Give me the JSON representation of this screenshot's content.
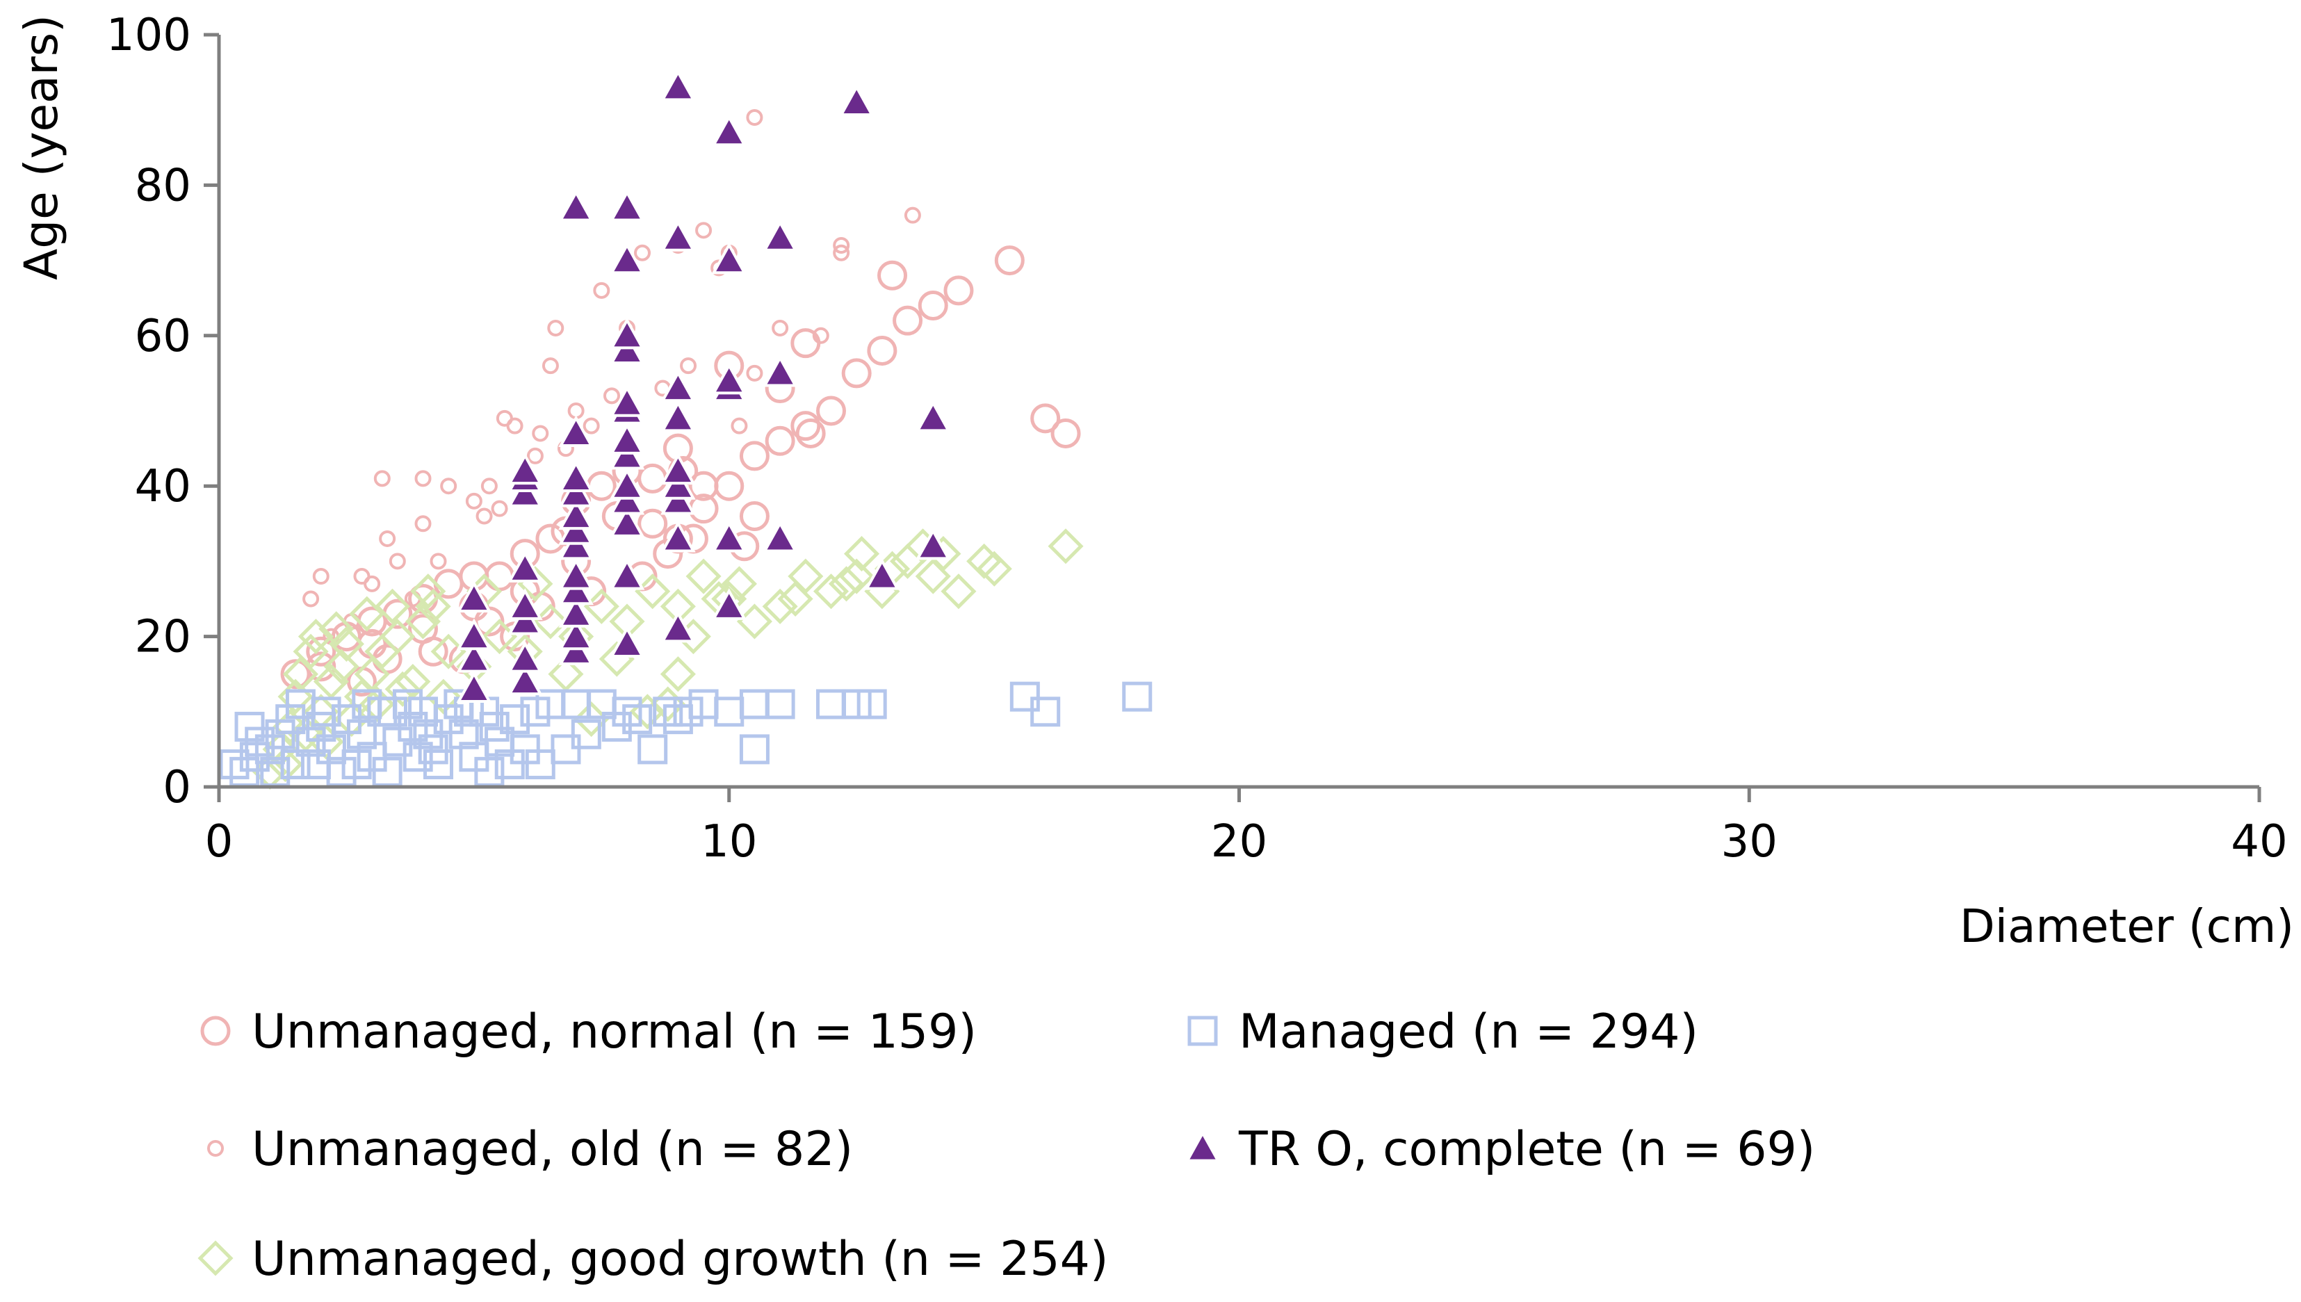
{
  "chart_data": {
    "type": "scatter",
    "title": "",
    "xlabel": "Diameter (cm)",
    "ylabel": "Age (years)",
    "xlim": [
      0,
      40
    ],
    "ylim": [
      0,
      100
    ],
    "xticks": [
      0,
      10,
      20,
      30,
      40
    ],
    "yticks": [
      0,
      20,
      40,
      60,
      80,
      100
    ],
    "grid": false,
    "legend_position": "bottom",
    "colors": {
      "normal": "#f0b4b4",
      "old": "#f0b4b4",
      "good": "#d6e8b0",
      "managed": "#b4c6ec",
      "tro": "#6a2a8c"
    },
    "series": [
      {
        "key": "normal",
        "name": "Unmanaged, normal (n = 159)",
        "marker": "circle-large",
        "points": [
          [
            1.5,
            15
          ],
          [
            2,
            18
          ],
          [
            2.5,
            20
          ],
          [
            3,
            22
          ],
          [
            3.5,
            23
          ],
          [
            4,
            25
          ],
          [
            4.5,
            27
          ],
          [
            5,
            28
          ],
          [
            5.5,
            28
          ],
          [
            6,
            31
          ],
          [
            6.5,
            33
          ],
          [
            7,
            38
          ],
          [
            7.5,
            40
          ],
          [
            8,
            42
          ],
          [
            8.5,
            41
          ],
          [
            9,
            45
          ],
          [
            9,
            33
          ],
          [
            9.5,
            40
          ],
          [
            10,
            40
          ],
          [
            10.5,
            44
          ],
          [
            11,
            46
          ],
          [
            11.5,
            48
          ],
          [
            12,
            50
          ],
          [
            12.5,
            55
          ],
          [
            13,
            58
          ],
          [
            13.5,
            62
          ],
          [
            14,
            64
          ],
          [
            14.5,
            66
          ],
          [
            15.5,
            70
          ],
          [
            13.2,
            68
          ],
          [
            11,
            53
          ],
          [
            16.2,
            49
          ],
          [
            16.6,
            47
          ],
          [
            11.6,
            47
          ],
          [
            10,
            56
          ],
          [
            11.5,
            59
          ],
          [
            10.5,
            36
          ],
          [
            9.5,
            37
          ],
          [
            8.5,
            35
          ],
          [
            7,
            30
          ],
          [
            6,
            26
          ],
          [
            5,
            24
          ],
          [
            4,
            21
          ],
          [
            3,
            19
          ],
          [
            2,
            16
          ],
          [
            2.8,
            14
          ],
          [
            3.3,
            17
          ],
          [
            4.2,
            18
          ],
          [
            5.3,
            22
          ],
          [
            6.3,
            24
          ],
          [
            7.3,
            26
          ],
          [
            8.3,
            28
          ],
          [
            8.8,
            31
          ],
          [
            9.3,
            33
          ],
          [
            10.3,
            32
          ],
          [
            6.8,
            34
          ],
          [
            7.8,
            36
          ],
          [
            9.1,
            42
          ],
          [
            5.8,
            20
          ],
          [
            4.8,
            17
          ]
        ]
      },
      {
        "key": "old",
        "name": "Unmanaged, old (n = 82)",
        "marker": "circle-small",
        "points": [
          [
            1.8,
            25
          ],
          [
            2,
            28
          ],
          [
            2.8,
            28
          ],
          [
            3,
            27
          ],
          [
            3.3,
            33
          ],
          [
            3.5,
            30
          ],
          [
            3.2,
            41
          ],
          [
            4,
            41
          ],
          [
            4,
            35
          ],
          [
            4.5,
            40
          ],
          [
            5,
            38
          ],
          [
            5.3,
            40
          ],
          [
            5.5,
            37
          ],
          [
            5.6,
            49
          ],
          [
            5.8,
            48
          ],
          [
            6.3,
            47
          ],
          [
            6.5,
            56
          ],
          [
            6.6,
            61
          ],
          [
            7,
            50
          ],
          [
            7.5,
            66
          ],
          [
            8,
            61
          ],
          [
            8.3,
            71
          ],
          [
            9,
            72
          ],
          [
            9.5,
            74
          ],
          [
            9.8,
            69
          ],
          [
            10,
            71
          ],
          [
            10.5,
            89
          ],
          [
            12.2,
            72
          ],
          [
            12.2,
            71
          ],
          [
            13.6,
            76
          ],
          [
            11,
            61
          ],
          [
            10.5,
            55
          ],
          [
            8.7,
            53
          ],
          [
            8,
            58
          ],
          [
            7.3,
            48
          ],
          [
            6.8,
            45
          ],
          [
            6.2,
            44
          ],
          [
            5.2,
            36
          ],
          [
            4.3,
            30
          ],
          [
            3.8,
            25
          ],
          [
            2.6,
            22
          ],
          [
            2.2,
            20
          ],
          [
            7.7,
            52
          ],
          [
            9.2,
            56
          ],
          [
            10.2,
            48
          ],
          [
            11.8,
            60
          ]
        ]
      },
      {
        "key": "good",
        "name": "Unmanaged, good growth (n = 254)",
        "marker": "diamond",
        "points": [
          [
            1,
            2
          ],
          [
            1.2,
            5
          ],
          [
            1.4,
            8
          ],
          [
            1.5,
            12
          ],
          [
            1.6,
            15
          ],
          [
            1.8,
            18
          ],
          [
            2,
            10
          ],
          [
            2.2,
            14
          ],
          [
            2.4,
            16
          ],
          [
            2.5,
            19
          ],
          [
            2.8,
            12
          ],
          [
            3,
            15
          ],
          [
            3.2,
            18
          ],
          [
            3.5,
            20
          ],
          [
            3.8,
            14
          ],
          [
            4,
            22
          ],
          [
            4.2,
            24
          ],
          [
            4.5,
            18
          ],
          [
            5,
            16
          ],
          [
            5.5,
            20
          ],
          [
            6,
            18
          ],
          [
            6.5,
            22
          ],
          [
            7,
            20
          ],
          [
            7.5,
            24
          ],
          [
            8,
            22
          ],
          [
            8.5,
            26
          ],
          [
            9,
            24
          ],
          [
            9.5,
            28
          ],
          [
            10,
            25
          ],
          [
            10.5,
            22
          ],
          [
            11,
            24
          ],
          [
            11.5,
            28
          ],
          [
            12,
            26
          ],
          [
            12.5,
            28
          ],
          [
            13,
            26
          ],
          [
            13.5,
            30
          ],
          [
            14,
            28
          ],
          [
            14.5,
            26
          ],
          [
            15,
            30
          ],
          [
            16.6,
            32
          ],
          [
            12.6,
            31
          ],
          [
            13.8,
            32
          ],
          [
            7.3,
            9
          ],
          [
            8.4,
            10
          ],
          [
            8.8,
            11
          ],
          [
            9,
            15
          ],
          [
            1.3,
            3
          ],
          [
            1.7,
            7
          ],
          [
            2.1,
            6
          ],
          [
            2.6,
            9
          ],
          [
            3.1,
            11
          ],
          [
            3.6,
            13
          ],
          [
            4.4,
            12
          ],
          [
            1.9,
            20
          ],
          [
            2.3,
            21
          ],
          [
            2.9,
            23
          ],
          [
            3.4,
            24
          ],
          [
            4.1,
            26
          ],
          [
            5.2,
            26
          ],
          [
            6.2,
            27
          ],
          [
            6.8,
            15
          ],
          [
            7.8,
            17
          ],
          [
            9.3,
            20
          ],
          [
            10.2,
            27
          ],
          [
            11.3,
            25
          ],
          [
            12.3,
            27
          ],
          [
            13.2,
            29
          ],
          [
            14.2,
            31
          ],
          [
            15.2,
            29
          ],
          [
            9.8,
            25
          ]
        ]
      },
      {
        "key": "managed",
        "name": "Managed (n = 294)",
        "marker": "square",
        "points": [
          [
            0.3,
            3
          ],
          [
            0.5,
            2
          ],
          [
            0.7,
            4
          ],
          [
            0.8,
            6
          ],
          [
            1,
            5
          ],
          [
            1.2,
            7
          ],
          [
            1.5,
            3
          ],
          [
            1.8,
            6
          ],
          [
            2,
            8
          ],
          [
            2.2,
            5
          ],
          [
            2.5,
            9
          ],
          [
            2.8,
            7
          ],
          [
            3,
            4
          ],
          [
            3.2,
            10
          ],
          [
            3.5,
            6
          ],
          [
            3.8,
            8
          ],
          [
            4,
            10
          ],
          [
            4.2,
            5
          ],
          [
            4.5,
            9
          ],
          [
            4.8,
            7
          ],
          [
            5,
            4
          ],
          [
            5.2,
            10
          ],
          [
            5.5,
            6
          ],
          [
            5.8,
            9
          ],
          [
            6,
            5
          ],
          [
            6.2,
            10
          ],
          [
            6.5,
            11
          ],
          [
            6.8,
            5
          ],
          [
            7,
            11
          ],
          [
            7.5,
            11
          ],
          [
            8,
            10
          ],
          [
            8.5,
            5
          ],
          [
            8.8,
            10
          ],
          [
            9,
            9
          ],
          [
            9.5,
            11
          ],
          [
            10,
            10
          ],
          [
            10.5,
            11
          ],
          [
            10.5,
            5
          ],
          [
            11,
            11
          ],
          [
            12,
            11
          ],
          [
            12.5,
            11
          ],
          [
            12.8,
            11
          ],
          [
            15.8,
            12
          ],
          [
            16.2,
            10
          ],
          [
            18,
            12
          ],
          [
            0.6,
            8
          ],
          [
            1.1,
            2
          ],
          [
            1.4,
            9
          ],
          [
            1.9,
            3
          ],
          [
            2.4,
            2
          ],
          [
            2.7,
            3
          ],
          [
            3.3,
            2
          ],
          [
            3.7,
            11
          ],
          [
            4.3,
            3
          ],
          [
            4.7,
            11
          ],
          [
            5.3,
            2
          ],
          [
            5.7,
            3
          ],
          [
            6.3,
            3
          ],
          [
            1.6,
            11
          ],
          [
            2.1,
            10
          ],
          [
            2.9,
            11
          ],
          [
            3.4,
            10
          ],
          [
            3.9,
            4
          ],
          [
            4.1,
            7
          ],
          [
            4.9,
            10
          ],
          [
            5.4,
            8
          ],
          [
            7.2,
            7
          ],
          [
            7.8,
            8
          ],
          [
            8.2,
            9
          ],
          [
            9.2,
            10
          ]
        ]
      },
      {
        "key": "tro",
        "name": "TR O, complete (n = 69)",
        "marker": "triangle",
        "points": [
          [
            5,
            13
          ],
          [
            5,
            17
          ],
          [
            5,
            20
          ],
          [
            5,
            25
          ],
          [
            6,
            14
          ],
          [
            6,
            17
          ],
          [
            6,
            22
          ],
          [
            6,
            24
          ],
          [
            6,
            29
          ],
          [
            6,
            39
          ],
          [
            6,
            41
          ],
          [
            6,
            42
          ],
          [
            7,
            18
          ],
          [
            7,
            20
          ],
          [
            7,
            23
          ],
          [
            7,
            26
          ],
          [
            7,
            28
          ],
          [
            7,
            32
          ],
          [
            7,
            34
          ],
          [
            7,
            36
          ],
          [
            7,
            39
          ],
          [
            7,
            41
          ],
          [
            7,
            47
          ],
          [
            7,
            77
          ],
          [
            8,
            19
          ],
          [
            8,
            28
          ],
          [
            8,
            35
          ],
          [
            8,
            38
          ],
          [
            8,
            40
          ],
          [
            8,
            44
          ],
          [
            8,
            46
          ],
          [
            8,
            50
          ],
          [
            8,
            51
          ],
          [
            8,
            58
          ],
          [
            8,
            60
          ],
          [
            8,
            70
          ],
          [
            8,
            77
          ],
          [
            9,
            21
          ],
          [
            9,
            33
          ],
          [
            9,
            38
          ],
          [
            9,
            40
          ],
          [
            9,
            42
          ],
          [
            9,
            49
          ],
          [
            9,
            53
          ],
          [
            9,
            73
          ],
          [
            9,
            93
          ],
          [
            10,
            24
          ],
          [
            10,
            33
          ],
          [
            10,
            53
          ],
          [
            10,
            54
          ],
          [
            10,
            70
          ],
          [
            10,
            87
          ],
          [
            11,
            33
          ],
          [
            11,
            55
          ],
          [
            11,
            73
          ],
          [
            12.5,
            91
          ],
          [
            13,
            28
          ],
          [
            14,
            32
          ],
          [
            14,
            49
          ]
        ]
      }
    ]
  }
}
